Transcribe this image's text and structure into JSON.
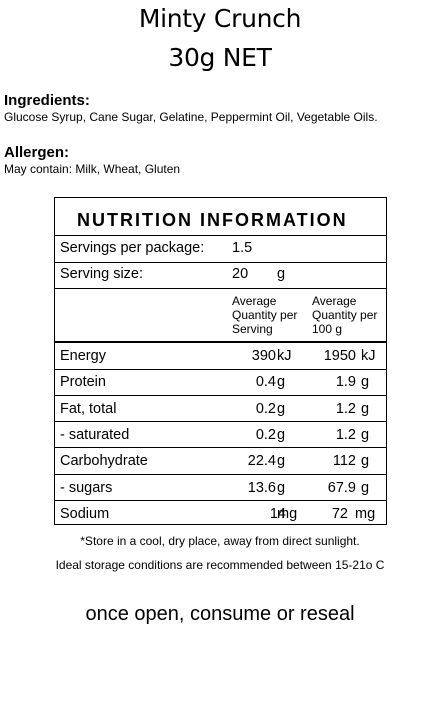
{
  "product": {
    "name": "Minty Crunch",
    "weight": "30g NET"
  },
  "ingredients": {
    "heading": "Ingredients:",
    "text": "Glucose Syrup, Cane Sugar, Gelatine, Peppermint Oil, Vegetable Oils."
  },
  "allergen": {
    "heading": "Allergen:",
    "text": "May contain: Milk, Wheat, Gluten"
  },
  "nutrition": {
    "title": "NUTRITION INFORMATION",
    "servings_label": "Servings per package:",
    "servings_value": "1.5",
    "serving_size_label": "Serving size:",
    "serving_size_value": "20",
    "serving_size_unit": "g",
    "col_per_serving": [
      "Average",
      "Quantity per",
      "Serving"
    ],
    "col_per_100g": [
      "Average",
      "Quantity per",
      "100 g"
    ],
    "rows": [
      {
        "name": "Energy",
        "per_serving": "390",
        "per_serving_unit": "kJ",
        "per_100g": "1950",
        "per_100g_unit": "kJ"
      },
      {
        "name": "Protein",
        "per_serving": "0.4",
        "per_serving_unit": "g",
        "per_100g": "1.9",
        "per_100g_unit": "g"
      },
      {
        "name": "Fat, total",
        "per_serving": "0.2",
        "per_serving_unit": "g",
        "per_100g": "1.2",
        "per_100g_unit": "g"
      },
      {
        "name": "- saturated",
        "per_serving": "0.2",
        "per_serving_unit": "g",
        "per_100g": "1.2",
        "per_100g_unit": "g"
      },
      {
        "name": "Carbohydrate",
        "per_serving": "22.4",
        "per_serving_unit": "g",
        "per_100g": "112",
        "per_100g_unit": "g"
      },
      {
        "name": "- sugars",
        "per_serving": "13.6",
        "per_serving_unit": "g",
        "per_100g": "67.9",
        "per_100g_unit": "g"
      },
      {
        "name": "Sodium",
        "per_serving": "14",
        "per_serving_unit": "mg",
        "per_100g": "72",
        "per_100g_unit": "mg"
      }
    ]
  },
  "notes": {
    "storage": "*Store in a cool, dry place, away from direct sunlight.",
    "ideal": "Ideal storage conditions are recommended between 15-21o C"
  },
  "reseal": "once open, consume or reseal"
}
